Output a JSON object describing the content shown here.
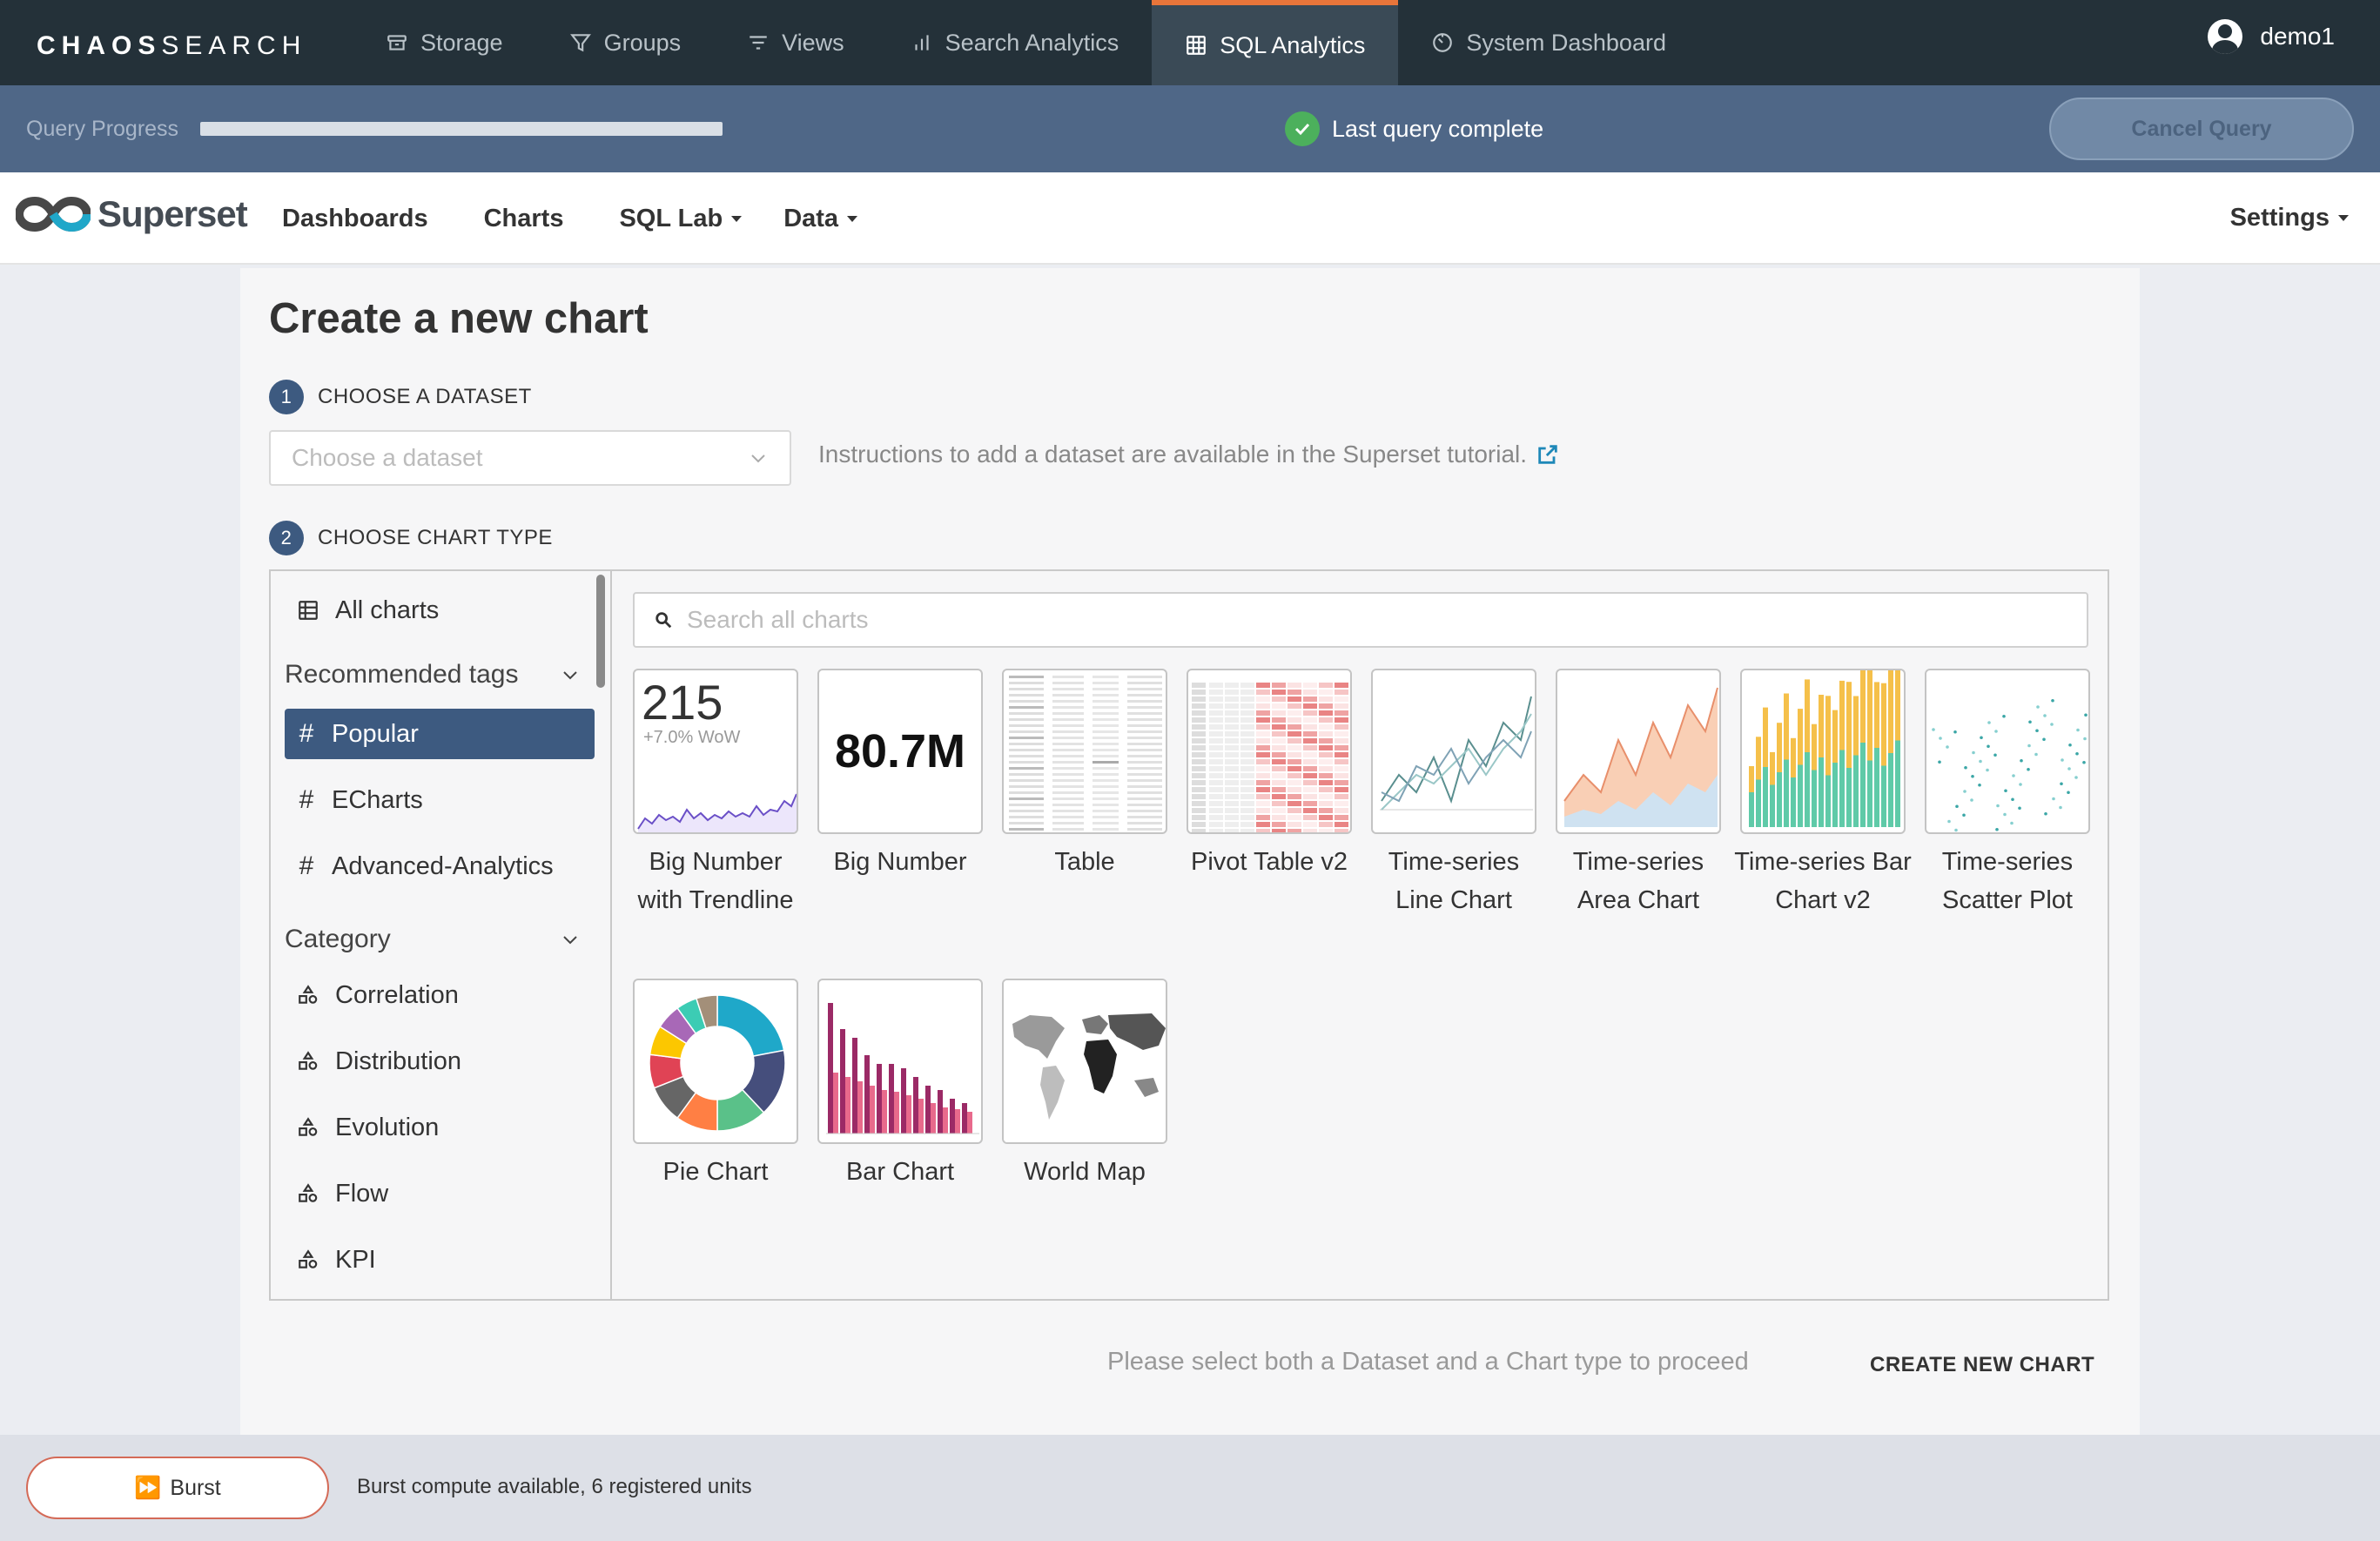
{
  "topnav": {
    "brand_bold": "CHAOS",
    "brand_thin": "SEARCH",
    "tabs": [
      {
        "label": "Storage",
        "icon": "storage-icon"
      },
      {
        "label": "Groups",
        "icon": "filter-icon"
      },
      {
        "label": "Views",
        "icon": "list-filter-icon"
      },
      {
        "label": "Search Analytics",
        "icon": "bar-chart-icon"
      },
      {
        "label": "SQL Analytics",
        "icon": "grid-icon",
        "active": true
      },
      {
        "label": "System Dashboard",
        "icon": "dashboard-icon"
      }
    ],
    "user": "demo1"
  },
  "query": {
    "label": "Query Progress",
    "status": "Last query complete",
    "cancel_label": "Cancel Query"
  },
  "superset": {
    "logo_text": "Superset",
    "menu": {
      "dashboards": "Dashboards",
      "charts": "Charts",
      "sqllab": "SQL Lab",
      "data": "Data"
    },
    "settings": "Settings"
  },
  "page": {
    "title": "Create a new chart",
    "step1_num": "1",
    "step1_label": "CHOOSE A DATASET",
    "dataset_placeholder": "Choose a dataset",
    "dataset_info": "Instructions to add a dataset are available in the Superset tutorial.",
    "step2_num": "2",
    "step2_label": "CHOOSE CHART TYPE",
    "search_placeholder": "Search all charts",
    "footer_message": "Please select both a Dataset and a Chart type to proceed",
    "create_label": "CREATE NEW CHART"
  },
  "sidebar": {
    "all_charts": "All charts",
    "recommended_tags": "Recommended tags",
    "tags": [
      "Popular",
      "ECharts",
      "Advanced-Analytics"
    ],
    "category": "Category",
    "categories": [
      "Correlation",
      "Distribution",
      "Evolution",
      "Flow",
      "KPI"
    ]
  },
  "charts": {
    "big_number_trend": {
      "label": "Big Number with Trendline",
      "thumb_value": "215",
      "thumb_sub": "+7.0% WoW"
    },
    "big_number": {
      "label": "Big Number",
      "thumb_value": "80.7M"
    },
    "table": {
      "label": "Table"
    },
    "pivot": {
      "label": "Pivot Table v2"
    },
    "ts_line": {
      "label": "Time-series Line Chart"
    },
    "ts_area": {
      "label": "Time-series Area Chart"
    },
    "ts_bar": {
      "label": "Time-series Bar Chart v2"
    },
    "ts_scatter": {
      "label": "Time-series Scatter Plot"
    },
    "pie": {
      "label": "Pie Chart"
    },
    "bar": {
      "label": "Bar Chart"
    },
    "world_map": {
      "label": "World Map"
    }
  },
  "burst": {
    "label": "Burst",
    "info": "Burst compute available, 6 registered units"
  },
  "colors": {
    "topnav_bg": "#243139",
    "progress_bg": "#4f6787",
    "accent_tab": "#e8753a",
    "selected_tag": "#3d5a80",
    "success": "#4cb05c"
  }
}
